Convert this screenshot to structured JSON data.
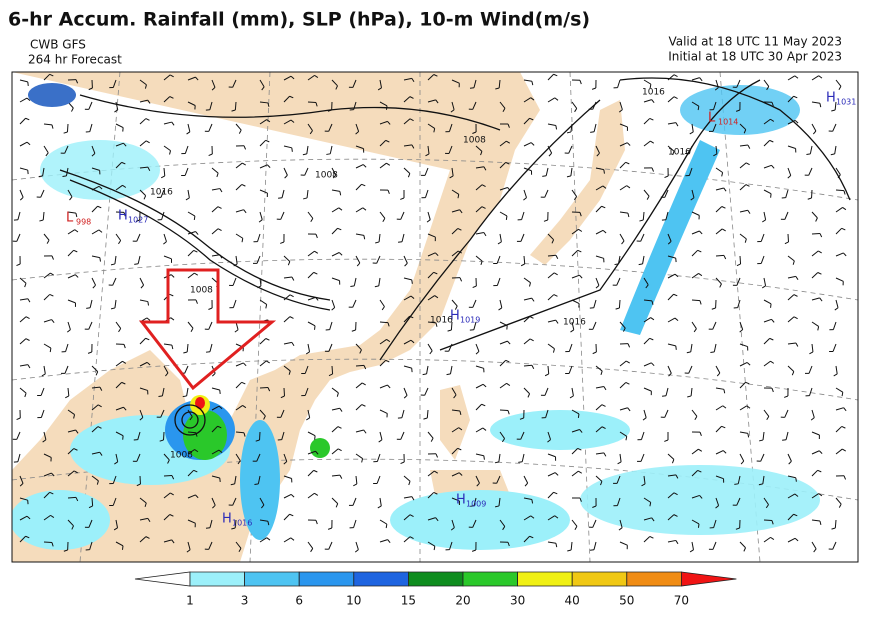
{
  "header": {
    "title": "6-hr Accum. Rainfall (mm), SLP (hPa), 10-m Wind(m/s)",
    "model": "CWB GFS",
    "forecast": "264 hr Forecast",
    "valid": "Valid at 18 UTC 11 May 2023",
    "initial": "Initial at 18 UTC 30 Apr 2023"
  },
  "map": {
    "pressure_centers": [
      {
        "letter": "H",
        "value": "1031",
        "color": "#2a2ab8"
      },
      {
        "letter": "L",
        "value": "1014",
        "color": "#d02020"
      },
      {
        "letter": "L",
        "value": "998",
        "color": "#d02020"
      },
      {
        "letter": "H",
        "value": "1027",
        "color": "#2a2ab8"
      },
      {
        "letter": "H",
        "value": "1019",
        "color": "#2a2ab8"
      },
      {
        "letter": "H",
        "value": "1016",
        "color": "#2a2ab8"
      },
      {
        "letter": "H",
        "value": "1009",
        "color": "#2a2ab8"
      }
    ],
    "contour_labels": [
      "1016",
      "1016",
      "1008",
      "1008",
      "1016",
      "1008",
      "1016",
      "1016",
      "1008"
    ]
  },
  "colorbar": {
    "ticks": [
      1,
      3,
      6,
      10,
      15,
      20,
      30,
      40,
      50,
      70
    ],
    "colors": [
      "#ffffff",
      "#9cf0fa",
      "#4ec4f2",
      "#2a96ee",
      "#1e64e0",
      "#0e8c1e",
      "#2ac82a",
      "#f0f014",
      "#f0c814",
      "#f08c14",
      "#f01414"
    ]
  }
}
